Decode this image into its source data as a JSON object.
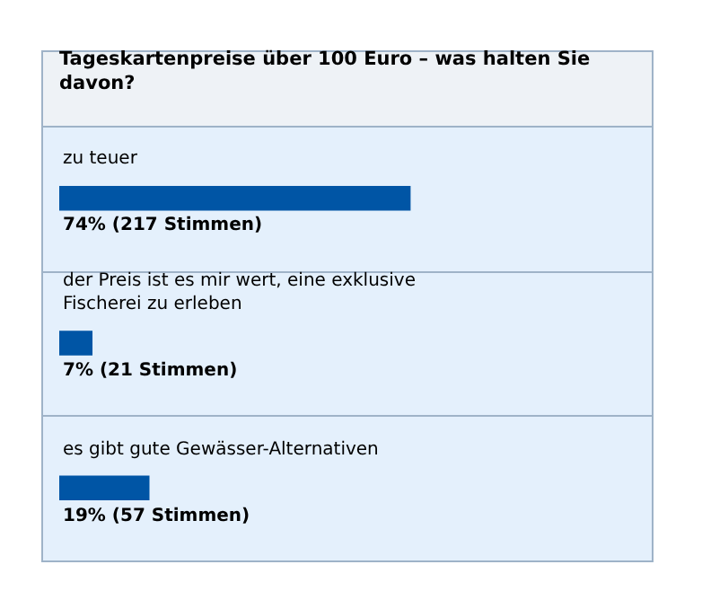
{
  "chart_data": {
    "type": "bar",
    "orientation": "horizontal",
    "title": "Tageskartenpreise über 100 Euro – was halten Sie davon?",
    "categories": [
      "zu teuer",
      "der Preis ist es mir wert, eine exklusive Fischerei zu erleben",
      "es gibt gute Gewässer-Alternativen"
    ],
    "values": [
      74,
      7,
      19
    ],
    "value_labels": [
      "74% (217 Stimmen)",
      "7% (21 Stimmen)",
      "19% (57 Stimmen)"
    ],
    "color": "#0055a5"
  }
}
